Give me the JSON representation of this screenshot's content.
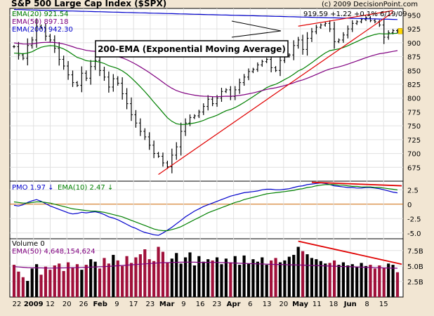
{
  "title": "S&P 500 Large Cap Index ($SPX)",
  "copyright": "(c) 2009 DecisionPoint.com",
  "last_quote": {
    "close": "919.59",
    "change": "+1.22",
    "pct": "+0.1%",
    "date": "6/19/09"
  },
  "colors": {
    "background": "#f2e6d3",
    "pane": "#ffffff",
    "ema20": "#008000",
    "ema50": "#800080",
    "ema200": "#0000cc",
    "trendline": "#e00000",
    "pmo": "#0000cc",
    "pmo_signal": "#008000",
    "volume_bar": "#a0103a",
    "volume_up": "#000000",
    "zero_line": "#cc6600"
  },
  "chart_data": [
    {
      "type": "line",
      "name": "price",
      "legend": [
        {
          "label": "EMA(20)",
          "value": "921.54",
          "color": "#008000"
        },
        {
          "label": "EMA(50)",
          "value": "897.18",
          "color": "#800080"
        },
        {
          "label": "EMA(200)",
          "value": "942.30",
          "color": "#0000cc"
        }
      ],
      "annotation": "200-EMA (Exponential Moving Average)",
      "ylim": [
        650,
        962
      ],
      "y_ticks": [
        675,
        700,
        725,
        750,
        775,
        800,
        825,
        850,
        875,
        900,
        925,
        950
      ],
      "x_ticks": [
        {
          "label": "22",
          "month": false
        },
        {
          "label": "2009",
          "month": true
        },
        {
          "label": "12",
          "month": false
        },
        {
          "label": "20",
          "month": false
        },
        {
          "label": "26",
          "month": false
        },
        {
          "label": "Feb",
          "month": true
        },
        {
          "label": "9",
          "month": false
        },
        {
          "label": "17",
          "month": false
        },
        {
          "label": "23",
          "month": false
        },
        {
          "label": "Mar",
          "month": true
        },
        {
          "label": "9",
          "month": false
        },
        {
          "label": "16",
          "month": false
        },
        {
          "label": "23",
          "month": false
        },
        {
          "label": "Apr",
          "month": true
        },
        {
          "label": "6",
          "month": false
        },
        {
          "label": "13",
          "month": false
        },
        {
          "label": "20",
          "month": false
        },
        {
          "label": "May",
          "month": true
        },
        {
          "label": "11",
          "month": false
        },
        {
          "label": "18",
          "month": false
        },
        {
          "label": "Jun",
          "month": true
        },
        {
          "label": "8",
          "month": false
        },
        {
          "label": "15",
          "month": false
        }
      ],
      "close": [
        893,
        878,
        872,
        895,
        905,
        930,
        927,
        912,
        905,
        890,
        870,
        858,
        842,
        828,
        823,
        845,
        836,
        857,
        868,
        850,
        838,
        820,
        835,
        827,
        808,
        790,
        770,
        755,
        740,
        730,
        715,
        700,
        695,
        683,
        676,
        697,
        712,
        740,
        755,
        765,
        768,
        775,
        785,
        798,
        790,
        800,
        812,
        815,
        803,
        815,
        828,
        838,
        848,
        852,
        860,
        866,
        870,
        855,
        850,
        868,
        876,
        878,
        895,
        905,
        888,
        908,
        920,
        928,
        932,
        935,
        925,
        902,
        905,
        914,
        925,
        935,
        938,
        942,
        945,
        940,
        938,
        932,
        910,
        918,
        922,
        920
      ]
    },
    {
      "type": "line",
      "name": "pmo",
      "legend": [
        {
          "label": "PMO",
          "value": "1.97",
          "arrow": "↓",
          "color": "#0000cc"
        },
        {
          "label": "EMA(10)",
          "value": "2.47",
          "arrow": "↓",
          "color": "#008000"
        }
      ],
      "ylim": [
        -6,
        4
      ],
      "y_ticks": [
        {
          "v": 2.5,
          "label": "2.5"
        },
        {
          "v": 0,
          "label": "0"
        },
        {
          "v": -2.5,
          "label": "-2.5"
        },
        {
          "v": -5,
          "label": "-5.0"
        }
      ],
      "series": [
        {
          "name": "PMO",
          "values": [
            -0.2,
            -0.3,
            -0.1,
            0.3,
            0.6,
            0.8,
            0.5,
            0.1,
            -0.3,
            -0.6,
            -0.9,
            -1.2,
            -1.5,
            -1.7,
            -1.6,
            -1.4,
            -1.5,
            -1.4,
            -1.3,
            -1.5,
            -1.8,
            -2.2,
            -2.4,
            -2.7,
            -3.1,
            -3.5,
            -3.9,
            -4.2,
            -4.6,
            -4.9,
            -5.1,
            -5.3,
            -5.4,
            -5.0,
            -4.5,
            -4.0,
            -3.4,
            -2.8,
            -2.2,
            -1.7,
            -1.2,
            -0.8,
            -0.4,
            -0.1,
            0.2,
            0.5,
            0.8,
            1.1,
            1.4,
            1.6,
            1.8,
            2.0,
            2.1,
            2.2,
            2.3,
            2.5,
            2.6,
            2.6,
            2.5,
            2.5,
            2.6,
            2.7,
            2.9,
            3.1,
            3.2,
            3.4,
            3.5,
            3.6,
            3.7,
            3.6,
            3.4,
            3.2,
            3.1,
            3.0,
            2.9,
            2.9,
            2.8,
            2.8,
            2.9,
            2.9,
            2.8,
            2.7,
            2.5,
            2.3,
            2.1,
            1.97
          ]
        },
        {
          "name": "EMA(10)",
          "values": [
            0.4,
            0.3,
            0.2,
            0.2,
            0.3,
            0.4,
            0.4,
            0.3,
            0.2,
            0.0,
            -0.2,
            -0.4,
            -0.6,
            -0.8,
            -0.9,
            -1.0,
            -1.1,
            -1.2,
            -1.2,
            -1.3,
            -1.4,
            -1.6,
            -1.8,
            -2.0,
            -2.2,
            -2.5,
            -2.8,
            -3.1,
            -3.4,
            -3.7,
            -4.0,
            -4.3,
            -4.5,
            -4.6,
            -4.6,
            -4.4,
            -4.2,
            -3.9,
            -3.5,
            -3.1,
            -2.7,
            -2.3,
            -1.9,
            -1.5,
            -1.2,
            -0.9,
            -0.6,
            -0.3,
            0.0,
            0.3,
            0.5,
            0.8,
            1.0,
            1.2,
            1.4,
            1.6,
            1.8,
            1.9,
            2.0,
            2.1,
            2.2,
            2.3,
            2.4,
            2.6,
            2.7,
            2.9,
            3.0,
            3.2,
            3.3,
            3.4,
            3.4,
            3.4,
            3.3,
            3.3,
            3.2,
            3.1,
            3.1,
            3.0,
            3.0,
            3.0,
            2.9,
            2.9,
            2.8,
            2.7,
            2.6,
            2.47
          ]
        }
      ]
    },
    {
      "type": "bar",
      "name": "volume",
      "legend_volume": "Volume 0",
      "legend_ema": "EMA(50) 4,648,154,624",
      "ylim": [
        0,
        9.4
      ],
      "y_ticks": [
        {
          "v": 2.5,
          "label": "2.5B"
        },
        {
          "v": 5.0,
          "label": "5.0B"
        },
        {
          "v": 7.5,
          "label": "7.5B"
        }
      ],
      "values": [
        5.2,
        4.1,
        3.2,
        2.6,
        4.6,
        5.3,
        3.6,
        4.9,
        4.4,
        5.1,
        5.4,
        4.2,
        5.6,
        4.8,
        5.3,
        4.4,
        5.2,
        6.1,
        5.7,
        4.6,
        6.3,
        5.4,
        6.8,
        5.9,
        5.0,
        6.6,
        5.5,
        6.4,
        6.9,
        7.7,
        6.1,
        5.8,
        8.1,
        7.3,
        5.5,
        6.2,
        7.1,
        5.4,
        6.4,
        7.2,
        5.1,
        6.6,
        5.7,
        6.1,
        5.9,
        6.4,
        5.3,
        6.2,
        5.6,
        6.6,
        5.2,
        6.7,
        5.4,
        6.1,
        5.7,
        6.4,
        5.2,
        5.9,
        6.3,
        5.6,
        5.9,
        6.5,
        6.8,
        8.1,
        7.4,
        6.9,
        6.3,
        6.1,
        5.8,
        5.4,
        5.5,
        5.9,
        5.2,
        5.6,
        5.1,
        5.3,
        4.9,
        5.5,
        5.0,
        5.2,
        4.6,
        5.1,
        4.7,
        5.4,
        5.2,
        4.0
      ],
      "ema": [
        4.9,
        4.85,
        4.8,
        4.75,
        4.72,
        4.7,
        4.7,
        4.68,
        4.67,
        4.68,
        4.7,
        4.7,
        4.72,
        4.73,
        4.75,
        4.78,
        4.8,
        4.82,
        4.85,
        4.88,
        4.9,
        4.95,
        5.0,
        5.05,
        5.1,
        5.15,
        5.2,
        5.25,
        5.3,
        5.35,
        5.4,
        5.45,
        5.5,
        5.55,
        5.55,
        5.58,
        5.6,
        5.62,
        5.63,
        5.63,
        5.62,
        5.6,
        5.6,
        5.6,
        5.58,
        5.58,
        5.55,
        5.55,
        5.5,
        5.48,
        5.45,
        5.43,
        5.4,
        5.38,
        5.35,
        5.33,
        5.3,
        5.28,
        5.25,
        5.25,
        5.23,
        5.2,
        5.2,
        5.18,
        5.15,
        5.13,
        5.1,
        5.08,
        5.05,
        5.02,
        5.0,
        4.97,
        4.95,
        4.92,
        4.9,
        4.88,
        4.85,
        4.82,
        4.8,
        4.78,
        4.75,
        4.73,
        4.7,
        4.68,
        4.66,
        4.648
      ]
    }
  ]
}
